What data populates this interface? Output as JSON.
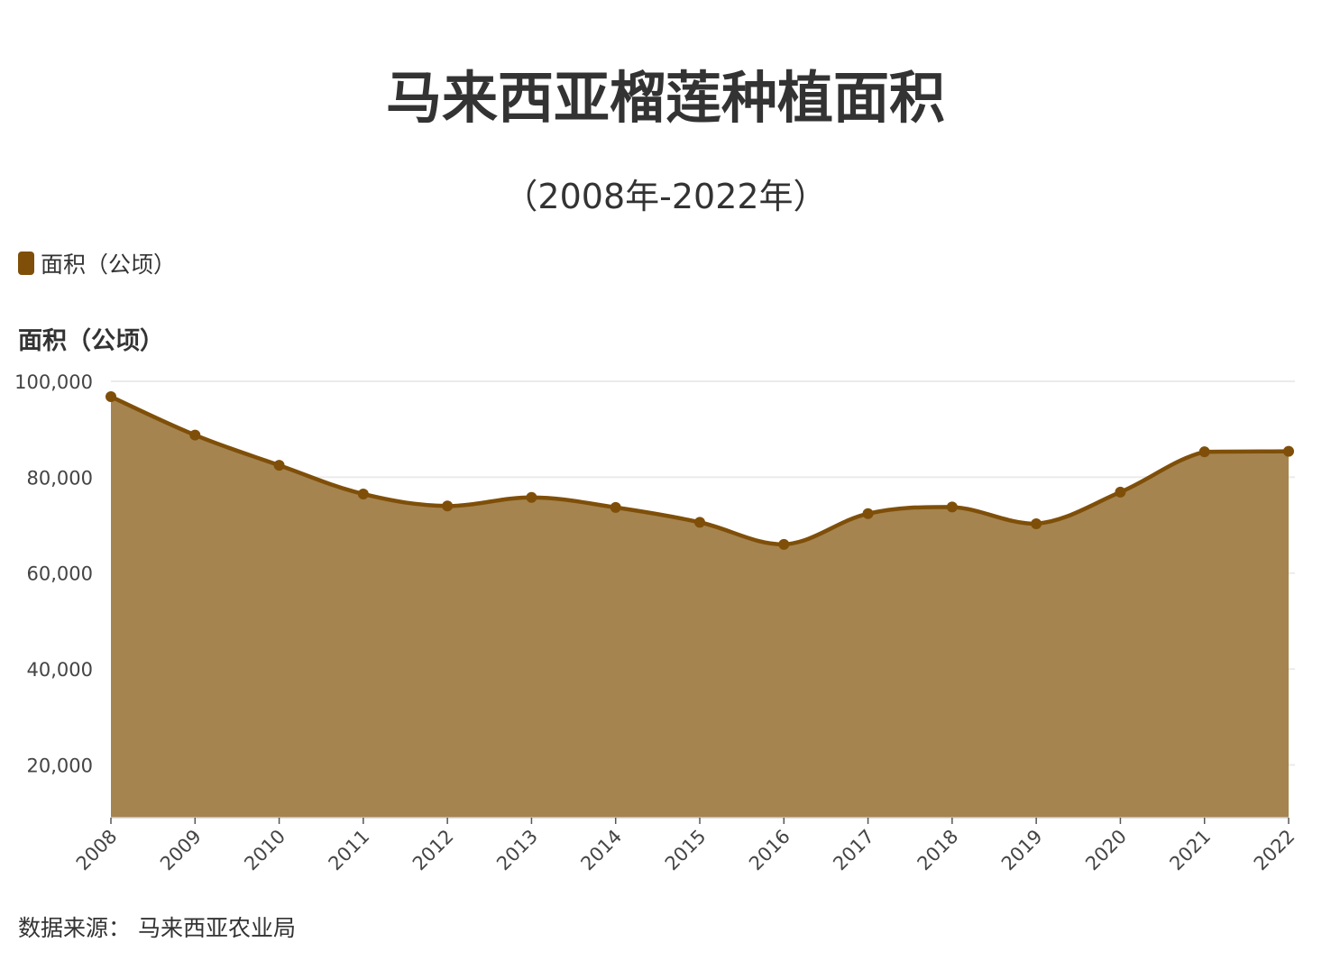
{
  "title": "马来西亚榴莲种植面积",
  "subtitle": "（2008年-2022年）",
  "source": "数据来源：  马来西亚农业局",
  "colors": {
    "line": "#7f4f09",
    "area": "#a5844f",
    "grid": "#ebebeb",
    "text": "#333333"
  },
  "chart_data": {
    "type": "area",
    "title": "马来西亚榴莲种植面积",
    "subtitle": "（2008年-2022年）",
    "xlabel": "",
    "ylabel": "面积（公顷）",
    "categories": [
      "2008",
      "2009",
      "2010",
      "2011",
      "2012",
      "2013",
      "2014",
      "2015",
      "2016",
      "2017",
      "2018",
      "2019",
      "2020",
      "2021",
      "2022"
    ],
    "series": [
      {
        "name": "面积（公顷）",
        "values": [
          96800,
          88800,
          82500,
          76500,
          74000,
          75800,
          73700,
          70600,
          66000,
          72400,
          73800,
          70300,
          76900,
          85300,
          85400
        ]
      }
    ],
    "yticks": [
      "20,000",
      "40,000",
      "60,000",
      "80,000",
      "100,000"
    ],
    "ylim": [
      9000,
      100000
    ],
    "grid": true,
    "legend": "top-left"
  }
}
